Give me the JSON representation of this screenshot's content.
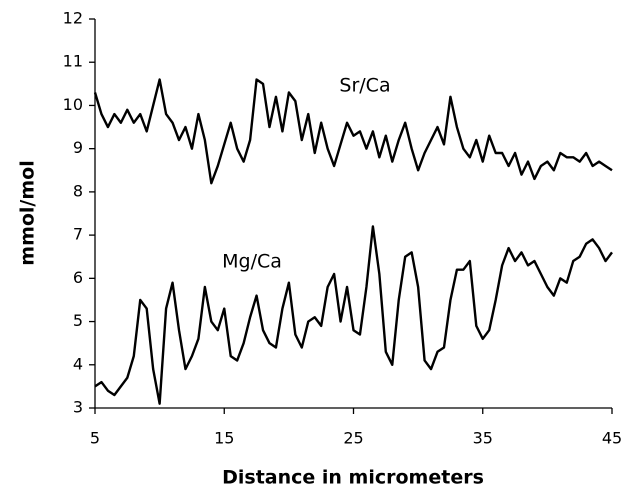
{
  "chart_data": {
    "type": "line",
    "x_label": "Distance in micrometers",
    "y_label": "mmol/mol",
    "x": [
      5,
      5.5,
      6,
      6.5,
      7,
      7.5,
      8,
      8.5,
      9,
      9.5,
      10,
      10.5,
      11,
      11.5,
      12,
      12.5,
      13,
      13.5,
      14,
      14.5,
      15,
      15.5,
      16,
      16.5,
      17,
      17.5,
      18,
      18.5,
      19,
      19.5,
      20,
      20.5,
      21,
      21.5,
      22,
      22.5,
      23,
      23.5,
      24,
      24.5,
      25,
      25.5,
      26,
      26.5,
      27,
      27.5,
      28,
      28.5,
      29,
      29.5,
      30,
      30.5,
      31,
      31.5,
      32,
      32.5,
      33,
      33.5,
      34,
      34.5,
      35,
      35.5,
      36,
      36.5,
      37,
      37.5,
      38,
      38.5,
      39,
      39.5,
      40,
      40.5,
      41,
      41.5,
      42,
      42.5,
      43,
      43.5,
      44,
      44.5,
      45
    ],
    "series": [
      {
        "name": "Sr/Ca",
        "color": "#000000",
        "values": [
          10.3,
          9.8,
          9.5,
          9.8,
          9.6,
          9.9,
          9.6,
          9.8,
          9.4,
          10.0,
          10.6,
          9.8,
          9.6,
          9.2,
          9.5,
          9.0,
          9.8,
          9.2,
          8.2,
          8.6,
          9.1,
          9.6,
          9.0,
          8.7,
          9.2,
          10.6,
          10.5,
          9.5,
          10.2,
          9.4,
          10.3,
          10.1,
          9.2,
          9.8,
          8.9,
          9.6,
          9.0,
          8.6,
          9.1,
          9.6,
          9.3,
          9.4,
          9.0,
          9.4,
          8.8,
          9.3,
          8.7,
          9.2,
          9.6,
          9.0,
          8.5,
          8.9,
          9.2,
          9.5,
          9.1,
          10.2,
          9.5,
          9.0,
          8.8,
          9.2,
          8.7,
          9.3,
          8.9,
          8.9,
          8.6,
          8.9,
          8.4,
          8.7,
          8.3,
          8.6,
          8.7,
          8.5,
          8.9,
          8.8,
          8.8,
          8.7,
          8.9,
          8.6,
          8.7,
          8.6,
          8.5
        ]
      },
      {
        "name": "Mg/Ca",
        "color": "#000000",
        "values": [
          3.5,
          3.6,
          3.4,
          3.3,
          3.5,
          3.7,
          4.2,
          5.5,
          5.3,
          3.9,
          3.1,
          5.3,
          5.9,
          4.8,
          3.9,
          4.2,
          4.6,
          5.8,
          5.0,
          4.8,
          5.3,
          4.2,
          4.1,
          4.5,
          5.1,
          5.6,
          4.8,
          4.5,
          4.4,
          5.3,
          5.9,
          4.7,
          4.4,
          5.0,
          5.1,
          4.9,
          5.8,
          6.1,
          5.0,
          5.8,
          4.8,
          4.7,
          5.8,
          7.2,
          6.1,
          4.3,
          4.0,
          5.5,
          6.5,
          6.6,
          5.8,
          4.1,
          3.9,
          4.3,
          4.4,
          5.5,
          6.2,
          6.2,
          6.4,
          4.9,
          4.6,
          4.8,
          5.5,
          6.3,
          6.7,
          6.4,
          6.6,
          6.3,
          6.4,
          6.1,
          5.8,
          5.6,
          6.0,
          5.9,
          6.4,
          6.5,
          6.8,
          6.9,
          6.7,
          6.4,
          6.6
        ]
      }
    ],
    "xlim": [
      5,
      45
    ],
    "xticks": [
      5,
      15,
      25,
      35,
      45
    ],
    "ylim": [
      3,
      12
    ],
    "yticks": [
      3,
      4,
      5,
      6,
      7,
      8,
      9,
      10,
      11,
      12
    ]
  }
}
